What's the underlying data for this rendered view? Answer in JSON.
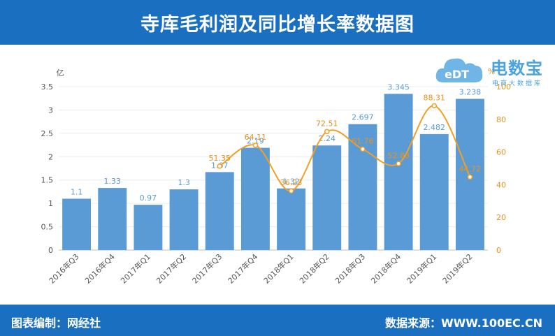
{
  "title": "寺库毛利润及同比增长率数据图",
  "footer": {
    "left": "图表编制：网经社",
    "right": "数据来源：WWW.100EC.CN"
  },
  "logo": {
    "main": "电数宝",
    "sub": "电商大数据库",
    "mark": "eDT"
  },
  "colors": {
    "header": "#1b6fc0",
    "bar": "#5b9bd5",
    "line": "#f0a024",
    "barLabel": "#5b9bd5",
    "lineLabel": "#e69320"
  },
  "chart_data": {
    "type": "bar",
    "categories": [
      "2016年Q3",
      "2016年Q4",
      "2017年Q1",
      "2017年Q2",
      "2017年Q3",
      "2017年Q4",
      "2018年Q1",
      "2018年Q2",
      "2018年Q3",
      "2018年Q4",
      "2019年Q1",
      "2019年Q2"
    ],
    "series": [
      {
        "type": "bar",
        "axis": "left",
        "values": [
          1.1,
          1.33,
          0.97,
          1.3,
          1.67,
          2.19,
          1.32,
          2.24,
          2.697,
          3.345,
          2.482,
          3.238
        ],
        "labels": [
          "1.1",
          "1.33",
          "0.97",
          "1.3",
          "1.67",
          "2.19",
          "1.32",
          "2.24",
          "2.697",
          "3.345",
          "2.482",
          "3.238"
        ]
      },
      {
        "type": "line",
        "axis": "right",
        "values": [
          null,
          null,
          null,
          null,
          51.35,
          64.11,
          36.23,
          72.51,
          61.76,
          52.88,
          88.31,
          44.72
        ],
        "labels": [
          "",
          "",
          "",
          "",
          "51.35",
          "64.11",
          "36.23",
          "72.51",
          "61.76",
          "52.88",
          "88.31",
          "44.72"
        ]
      }
    ],
    "yaxis_left": {
      "unit": "亿",
      "min": 0,
      "max": 3.5,
      "ticks": [
        "0",
        "0.5",
        "1",
        "1.5",
        "2",
        "2.5",
        "3",
        "3.5"
      ]
    },
    "yaxis_right": {
      "unit": "%",
      "min": 0,
      "max": 100,
      "ticks": [
        "0",
        "20",
        "40",
        "60",
        "80",
        "100"
      ]
    },
    "grid": true
  }
}
